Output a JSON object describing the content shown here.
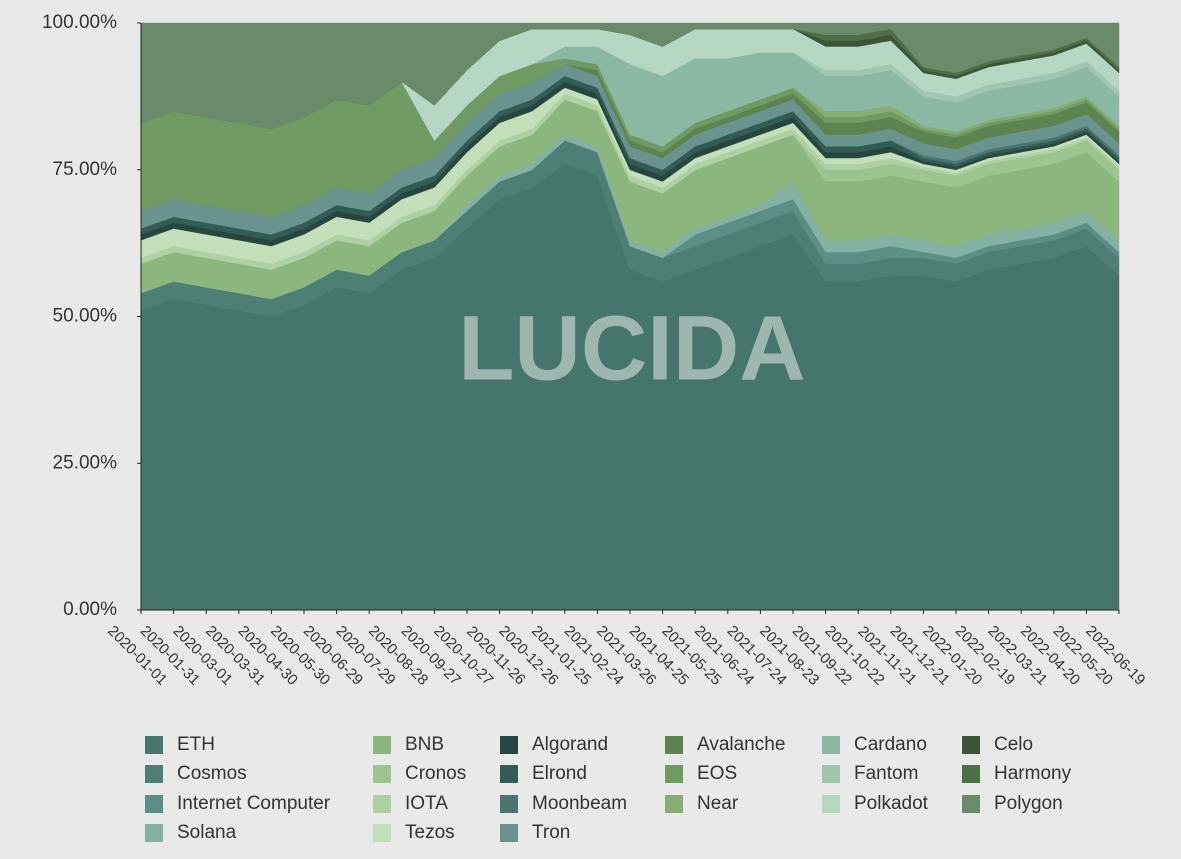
{
  "chart_data": {
    "type": "stacked-area",
    "watermark": "LUCIDA",
    "x": [
      "2020-01-01",
      "2020-01-31",
      "2020-03-01",
      "2020-03-31",
      "2020-04-30",
      "2020-05-30",
      "2020-06-29",
      "2020-07-29",
      "2020-08-28",
      "2020-09-27",
      "2020-10-27",
      "2020-11-26",
      "2020-12-26",
      "2021-01-25",
      "2021-02-24",
      "2021-03-26",
      "2021-04-25",
      "2021-05-25",
      "2021-06-24",
      "2021-07-24",
      "2021-08-23",
      "2021-09-22",
      "2021-10-22",
      "2021-11-21",
      "2021-12-21",
      "2022-01-20",
      "2022-02-19",
      "2022-03-21",
      "2022-04-20",
      "2022-05-20",
      "2022-06-19"
    ],
    "xlim": [
      "2020-01-01",
      "2022-06-19"
    ],
    "xticks": [
      "2020-01-01",
      "2020-01-31",
      "2020-03-01",
      "2020-03-31",
      "2020-04-30",
      "2020-05-30",
      "2020-06-29",
      "2020-07-29",
      "2020-08-28",
      "2020-09-27",
      "2020-10-27",
      "2020-11-26",
      "2020-12-26",
      "2021-01-25",
      "2021-02-24",
      "2021-03-26",
      "2021-04-25",
      "2021-05-25",
      "2021-06-24",
      "2021-07-24",
      "2021-08-23",
      "2021-09-22",
      "2021-10-22",
      "2021-11-21",
      "2021-12-21",
      "2022-01-20",
      "2022-02-19",
      "2022-03-21",
      "2022-04-20",
      "2022-05-20",
      "2022-06-19"
    ],
    "ylim": [
      0,
      100
    ],
    "yticks": [
      {
        "value": 0,
        "label": "0.00%"
      },
      {
        "value": 25,
        "label": "25.00%"
      },
      {
        "value": 50,
        "label": "50.00%"
      },
      {
        "value": 75,
        "label": "75.00%"
      },
      {
        "value": 100,
        "label": "100.00%"
      }
    ],
    "grid": false,
    "series": [
      {
        "name": "ETH",
        "color": "#45756b",
        "values": [
          51,
          53,
          52,
          51,
          50,
          52,
          55,
          54,
          58,
          60,
          65,
          70,
          72,
          76,
          74,
          58,
          56,
          58,
          60,
          62,
          64,
          56,
          56,
          57,
          57,
          56,
          58,
          59,
          60,
          62,
          57
        ]
      },
      {
        "name": "Cosmos",
        "color": "#4f7f74",
        "values": [
          3,
          3,
          3,
          3,
          3,
          3,
          3,
          3,
          3,
          3,
          3,
          3,
          3,
          4,
          4,
          4,
          4,
          4,
          4,
          4,
          4,
          3,
          3,
          3,
          3,
          3,
          3,
          3,
          3,
          3,
          3
        ]
      },
      {
        "name": "Internet Computer",
        "color": "#5b8f85",
        "values": [
          0,
          0,
          0,
          0,
          0,
          0,
          0,
          0,
          0,
          0,
          0,
          0,
          0,
          0,
          0,
          0,
          0,
          2,
          2,
          2,
          2,
          2,
          2,
          2,
          1,
          1,
          1,
          1,
          1,
          1,
          1
        ]
      },
      {
        "name": "Solana",
        "color": "#85b0a4",
        "values": [
          0,
          0,
          0,
          0,
          0,
          0,
          0,
          0,
          0,
          0,
          1,
          1,
          1,
          1,
          1,
          1,
          1,
          1,
          1,
          1,
          3,
          2,
          2,
          2,
          2,
          2,
          2,
          2,
          2,
          2,
          2
        ]
      },
      {
        "name": "BNB",
        "color": "#8bb77f",
        "values": [
          5,
          5,
          5,
          5,
          5,
          5,
          5,
          5,
          5,
          5,
          5,
          5,
          5,
          6,
          6,
          10,
          10,
          10,
          10,
          10,
          8,
          10,
          10,
          10,
          10,
          10,
          10,
          10,
          10,
          10,
          10
        ]
      },
      {
        "name": "Cronos",
        "color": "#9cc48e",
        "values": [
          0,
          0,
          0,
          0,
          0,
          0,
          0,
          0,
          0,
          0,
          0,
          0,
          0,
          0,
          0,
          0,
          0,
          0,
          0,
          0,
          0,
          2,
          2,
          2,
          2,
          2,
          2,
          2,
          2,
          2,
          2
        ]
      },
      {
        "name": "IOTA",
        "color": "#afd0a3",
        "values": [
          1,
          1,
          1,
          1,
          1,
          1,
          1,
          1,
          1,
          1,
          1,
          1,
          1,
          1,
          1,
          1,
          1,
          1,
          1,
          1,
          1,
          1,
          1,
          1,
          0.5,
          0.5,
          0.5,
          0.5,
          0.5,
          0.5,
          0.5
        ]
      },
      {
        "name": "Tezos",
        "color": "#c3dfba",
        "values": [
          3,
          3,
          3,
          3,
          3,
          3,
          3,
          3,
          3,
          3,
          3,
          3,
          3,
          1,
          1,
          1,
          1,
          1,
          1,
          1,
          1,
          1,
          1,
          1,
          0.5,
          0.5,
          0.5,
          0.5,
          0.5,
          0.5,
          0.5
        ]
      },
      {
        "name": "Algorand",
        "color": "#26463f",
        "values": [
          1,
          1,
          1,
          1,
          1,
          1,
          1,
          1,
          1,
          1,
          1,
          1,
          1,
          1,
          1,
          1,
          1,
          1,
          1,
          1,
          1,
          1,
          1,
          1,
          0.5,
          0.5,
          0.5,
          0.5,
          0.5,
          0.5,
          0.5
        ]
      },
      {
        "name": "Elrond",
        "color": "#335c55",
        "values": [
          1,
          1,
          1,
          1,
          1,
          1,
          1,
          1,
          1,
          1,
          1,
          1,
          1,
          1,
          1,
          1,
          1,
          1,
          1,
          1,
          1,
          1,
          1,
          1,
          0.5,
          0.5,
          0.5,
          0.5,
          0.5,
          0.5,
          0.5
        ]
      },
      {
        "name": "Moonbeam",
        "color": "#4d7470",
        "values": [
          0,
          0,
          0,
          0,
          0,
          0,
          0,
          0,
          0,
          0,
          0,
          0,
          0,
          0,
          0,
          0,
          0,
          0,
          0,
          0,
          0,
          0,
          0,
          0,
          0.5,
          0.5,
          0.5,
          0.5,
          0.5,
          0.5,
          0.5
        ]
      },
      {
        "name": "Tron",
        "color": "#6a9390",
        "values": [
          3,
          3,
          3,
          3,
          3,
          3,
          3,
          3,
          3,
          3,
          3,
          3,
          3,
          2,
          2,
          2,
          2,
          2,
          2,
          2,
          2,
          2,
          2,
          2,
          2,
          2,
          2,
          2,
          2,
          2,
          2
        ]
      },
      {
        "name": "Avalanche",
        "color": "#5b8450",
        "values": [
          0,
          0,
          0,
          0,
          0,
          0,
          0,
          0,
          0,
          0,
          0,
          0,
          0,
          0,
          1,
          1,
          1,
          1,
          1,
          1,
          1,
          2,
          2,
          2,
          2,
          2,
          2,
          2,
          2,
          2,
          2
        ]
      },
      {
        "name": "EOS",
        "color": "#6f9a62",
        "values": [
          15,
          15,
          15,
          15,
          15,
          15,
          15,
          15,
          15,
          3,
          3,
          3,
          3,
          1,
          1,
          1,
          1,
          1,
          1,
          1,
          1,
          1,
          1,
          1,
          0.5,
          0.5,
          0.5,
          0.5,
          0.5,
          0.5,
          0.5
        ]
      },
      {
        "name": "Near",
        "color": "#86ad73",
        "values": [
          0,
          0,
          0,
          0,
          0,
          0,
          0,
          0,
          0,
          0,
          0,
          0,
          0,
          0,
          0,
          0,
          0,
          0,
          0,
          0,
          0,
          1,
          1,
          1,
          0.5,
          0.5,
          0.5,
          0.5,
          0.5,
          0.5,
          0.5
        ]
      },
      {
        "name": "Cardano",
        "color": "#8ab8a4",
        "values": [
          0,
          0,
          0,
          0,
          0,
          0,
          0,
          0,
          0,
          0,
          0,
          0,
          0,
          2,
          3,
          12,
          12,
          11,
          9,
          8,
          6,
          6,
          6,
          6,
          5,
          5,
          5,
          5,
          5,
          5,
          5
        ]
      },
      {
        "name": "Fantom",
        "color": "#a0c6b3",
        "values": [
          0,
          0,
          0,
          0,
          0,
          0,
          0,
          0,
          0,
          0,
          0,
          0,
          0,
          0,
          0,
          0,
          0,
          0,
          0,
          0,
          0,
          1,
          1,
          1,
          1,
          1,
          1,
          1,
          1,
          1,
          1
        ]
      },
      {
        "name": "Polkadot",
        "color": "#b6d6c4",
        "values": [
          0,
          0,
          0,
          0,
          0,
          0,
          0,
          0,
          0,
          6,
          6,
          6,
          6,
          3,
          3,
          5,
          5,
          5,
          5,
          4,
          4,
          4,
          4,
          4,
          3,
          3,
          3,
          3,
          3,
          3,
          3
        ]
      },
      {
        "name": "Celo",
        "color": "#3b5536",
        "values": [
          0,
          0,
          0,
          0,
          0,
          0,
          0,
          0,
          0,
          0,
          0,
          0,
          0,
          0,
          0,
          0,
          0,
          0,
          0,
          0,
          0,
          1,
          1,
          1,
          0.5,
          0.5,
          0.5,
          0.5,
          0.5,
          0.5,
          0.5
        ]
      },
      {
        "name": "Harmony",
        "color": "#4e6e49",
        "values": [
          0,
          0,
          0,
          0,
          0,
          0,
          0,
          0,
          0,
          0,
          0,
          0,
          0,
          0,
          0,
          0,
          0,
          0,
          0,
          0,
          0,
          1,
          1,
          1,
          0.5,
          0.5,
          0.5,
          0.5,
          0.5,
          0.5,
          0.5
        ]
      },
      {
        "name": "Polygon",
        "color": "#6b8a6a",
        "values": [
          17,
          15,
          16,
          17,
          18,
          16,
          13,
          14,
          10,
          14,
          8,
          3,
          1,
          1,
          1,
          2,
          4,
          1,
          1,
          1,
          1,
          2,
          2,
          1,
          7.5,
          8.5,
          6.5,
          5.5,
          4.5,
          2.5,
          7.5
        ]
      }
    ]
  }
}
